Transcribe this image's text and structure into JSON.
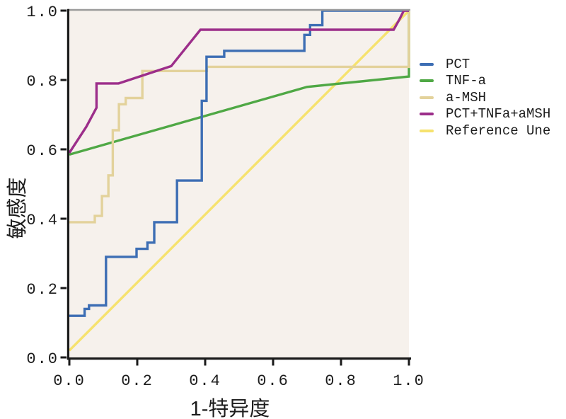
{
  "figure": {
    "background": "#ffffff",
    "plot_background": "#f6f1ec",
    "axis_color": "#1a1a1a",
    "top_border_color": "#9b9b9b",
    "text_color": "#1c1c1c"
  },
  "chart_data": {
    "type": "line",
    "subtype": "roc-curve",
    "title": "",
    "xlabel": "1-特异度",
    "ylabel": "敏感度",
    "xlim": [
      0.0,
      1.0
    ],
    "ylim": [
      0.0,
      1.0
    ],
    "grid": false,
    "legend_position": "right",
    "x_ticks": [
      "0.0",
      "0.2",
      "0.4",
      "0.6",
      "0.8",
      "1.0"
    ],
    "y_ticks": [
      "0.0",
      "0.2",
      "0.4",
      "0.6",
      "0.8",
      "1.0"
    ],
    "series": [
      {
        "name": "PCT",
        "color": "#3d6eb4",
        "z": 3,
        "points": [
          [
            0,
            0.12
          ],
          [
            0.045,
            0.12
          ],
          [
            0.045,
            0.14
          ],
          [
            0.058,
            0.14
          ],
          [
            0.058,
            0.15
          ],
          [
            0.108,
            0.15
          ],
          [
            0.108,
            0.29
          ],
          [
            0.198,
            0.29
          ],
          [
            0.198,
            0.313
          ],
          [
            0.23,
            0.313
          ],
          [
            0.23,
            0.331
          ],
          [
            0.25,
            0.331
          ],
          [
            0.25,
            0.39
          ],
          [
            0.317,
            0.39
          ],
          [
            0.317,
            0.51
          ],
          [
            0.39,
            0.51
          ],
          [
            0.39,
            0.74
          ],
          [
            0.404,
            0.74
          ],
          [
            0.404,
            0.867
          ],
          [
            0.456,
            0.867
          ],
          [
            0.456,
            0.884
          ],
          [
            0.692,
            0.884
          ],
          [
            0.692,
            0.93
          ],
          [
            0.709,
            0.93
          ],
          [
            0.709,
            0.958
          ],
          [
            0.745,
            0.958
          ],
          [
            0.745,
            1.0
          ],
          [
            1.0,
            1.0
          ]
        ]
      },
      {
        "name": "TNF-a",
        "color": "#4fa845",
        "z": 1,
        "points": [
          [
            0,
            0.585
          ],
          [
            0.7,
            0.78
          ],
          [
            1.0,
            0.81
          ],
          [
            1.0,
            1.0
          ]
        ]
      },
      {
        "name": "a-MSH",
        "color": "#e3d29b",
        "z": 2,
        "points": [
          [
            0,
            0.39
          ],
          [
            0.075,
            0.39
          ],
          [
            0.075,
            0.408
          ],
          [
            0.096,
            0.408
          ],
          [
            0.096,
            0.465
          ],
          [
            0.115,
            0.465
          ],
          [
            0.115,
            0.525
          ],
          [
            0.128,
            0.525
          ],
          [
            0.128,
            0.655
          ],
          [
            0.146,
            0.655
          ],
          [
            0.146,
            0.73
          ],
          [
            0.166,
            0.73
          ],
          [
            0.166,
            0.748
          ],
          [
            0.215,
            0.748
          ],
          [
            0.215,
            0.826
          ],
          [
            0.405,
            0.826
          ],
          [
            0.405,
            0.838
          ],
          [
            1.0,
            0.838
          ],
          [
            1.0,
            1.0
          ]
        ]
      },
      {
        "name": "PCT+TNFa+aMSH",
        "color": "#9c2e8a",
        "z": 4,
        "points": [
          [
            0,
            0.59
          ],
          [
            0.05,
            0.665
          ],
          [
            0.08,
            0.72
          ],
          [
            0.08,
            0.79
          ],
          [
            0.145,
            0.79
          ],
          [
            0.3,
            0.84
          ],
          [
            0.386,
            0.945
          ],
          [
            0.955,
            0.945
          ],
          [
            0.972,
            0.975
          ],
          [
            0.985,
            1.0
          ],
          [
            1.0,
            1.0
          ]
        ]
      },
      {
        "name": "Reference Une",
        "color": "#f6e26e",
        "z": 0,
        "points": [
          [
            0,
            0.02
          ],
          [
            1.0,
            1.0
          ]
        ]
      }
    ]
  }
}
